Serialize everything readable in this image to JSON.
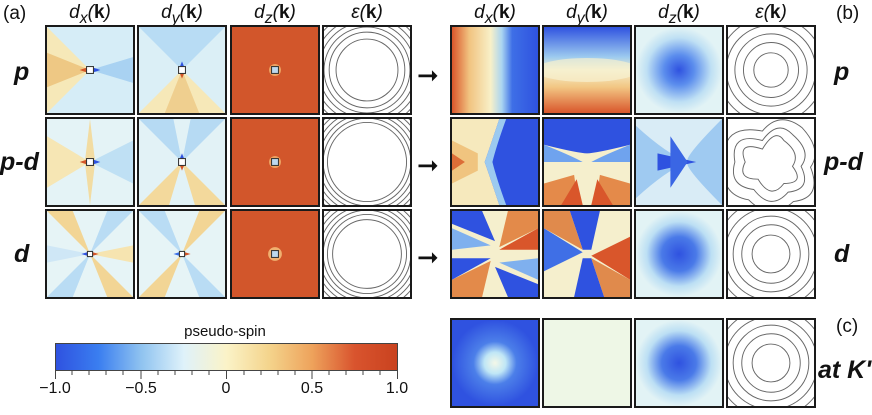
{
  "panel_labels": {
    "a": "(a)",
    "b": "(b)",
    "c": "(c)"
  },
  "columns": [
    {
      "sym": "d",
      "sub": "x",
      "arg": "k"
    },
    {
      "sym": "d",
      "sub": "y",
      "arg": "k"
    },
    {
      "sym": "d",
      "sub": "z",
      "arg": "k"
    },
    {
      "sym": "ε",
      "sub": "",
      "arg": "k"
    }
  ],
  "rows_left": [
    {
      "label": "p"
    },
    {
      "label": "p-d"
    },
    {
      "label": "d"
    }
  ],
  "rows_right": [
    {
      "label": "p"
    },
    {
      "label": "p-d"
    },
    {
      "label": "d"
    },
    {
      "label": "at K'"
    }
  ],
  "arrow_glyph": "➞",
  "colorbar": {
    "title": "pseudo-spin",
    "ticks": [
      "−1.0",
      "−0.5",
      "0",
      "0.5",
      "1.0"
    ],
    "colors": [
      "#2f52e0",
      "#3a7ef0",
      "#8fc3f0",
      "#dff2fa",
      "#fbf3c8",
      "#f4d48c",
      "#eea35c",
      "#d9542e",
      "#c9421f"
    ]
  }
}
